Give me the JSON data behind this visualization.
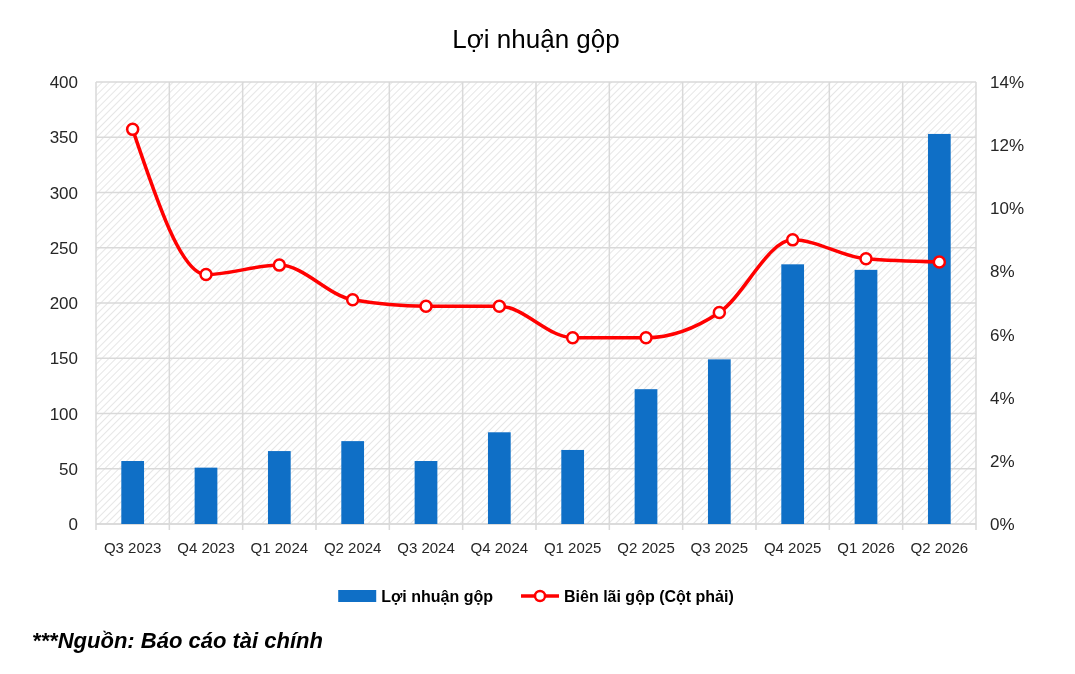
{
  "chart_data": {
    "type": "bar",
    "title": "Lợi nhuận gộp",
    "categories": [
      "Q3 2023",
      "Q4 2023",
      "Q1 2024",
      "Q2 2024",
      "Q3 2024",
      "Q4 2024",
      "Q1 2025",
      "Q2 2025",
      "Q3 2025",
      "Q4 2025",
      "Q1 2026",
      "Q2 2026"
    ],
    "series": [
      {
        "name": "Lợi nhuận gộp",
        "color": "#0f6fc6",
        "values": [
          57,
          51,
          66,
          75,
          57,
          83,
          67,
          122,
          149,
          235,
          230,
          353
        ]
      },
      {
        "name": "Biên lãi gộp (Cột phải)",
        "type": "line",
        "axis": "y2",
        "color": "#ff0000",
        "values": [
          12.5,
          7.9,
          8.2,
          7.1,
          6.9,
          6.9,
          5.9,
          5.9,
          6.7,
          9.0,
          8.4,
          8.3
        ]
      }
    ],
    "ylim": [
      0,
      400
    ],
    "yticks": [
      0,
      50,
      100,
      150,
      200,
      250,
      300,
      350,
      400
    ],
    "y2lim": [
      0,
      14
    ],
    "y2ticks": [
      {
        "value": 0,
        "label": "0%"
      },
      {
        "value": 2,
        "label": "2%"
      },
      {
        "value": 4,
        "label": "4%"
      },
      {
        "value": 6,
        "label": "6%"
      },
      {
        "value": 8,
        "label": "8%"
      },
      {
        "value": 10,
        "label": "10%"
      },
      {
        "value": 12,
        "label": "12%"
      },
      {
        "value": 14,
        "label": "14%"
      }
    ],
    "grid": true,
    "legend": "bottom",
    "marker": "circle",
    "annotations": [
      "***Nguồn: Báo cáo tài chính"
    ]
  }
}
